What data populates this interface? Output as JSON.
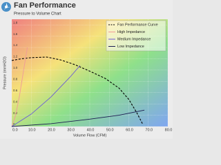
{
  "chart_data": {
    "type": "line",
    "title": "Fan Performance",
    "subtitle": "Pressure to Volume Chart",
    "x_label": "Volume Flow (CFM)",
    "y_label": "Pressure (mmH2O)",
    "xlim": [
      0,
      80
    ],
    "ylim": [
      0,
      1.9
    ],
    "xticks": [
      {
        "value": 0,
        "label": "0.0"
      },
      {
        "value": 10,
        "label": "10.0"
      },
      {
        "value": 20,
        "label": "20.0"
      },
      {
        "value": 30,
        "label": "30.0"
      },
      {
        "value": 40,
        "label": "40.0"
      },
      {
        "value": 50,
        "label": "50.0"
      },
      {
        "value": 60,
        "label": "60.0"
      },
      {
        "value": 70,
        "label": "70.0"
      },
      {
        "value": 80,
        "label": "80.0"
      }
    ],
    "yticks": [
      0,
      0.2,
      0.4,
      0.6,
      0.8,
      {
        "value": 1,
        "label": "1.0"
      },
      1.2,
      1.4,
      1.6,
      1.8
    ],
    "grid": true,
    "legend": "upper right",
    "series": [
      {
        "name": "Fan Performance Curve",
        "color": "#000000",
        "dashed": true,
        "x": [
          0,
          5,
          10,
          18,
          25,
          32,
          40,
          48,
          55,
          60,
          64,
          67
        ],
        "values": [
          1.17,
          1.2,
          1.22,
          1.23,
          1.18,
          1.1,
          0.98,
          0.85,
          0.68,
          0.48,
          0.25,
          0.05
        ]
      },
      {
        "name": "High Impedance",
        "color": "#f09a9a",
        "dashed": false,
        "x": [
          0,
          2,
          4,
          6,
          8
        ],
        "values": [
          0,
          0.2,
          0.55,
          0.98,
          1.4
        ]
      },
      {
        "name": "Medium Impedance",
        "color": "#6a5ad8",
        "dashed": false,
        "x": [
          0,
          10,
          20,
          30,
          35
        ],
        "values": [
          0,
          0.22,
          0.52,
          0.88,
          1.08
        ]
      },
      {
        "name": "Low Impedance",
        "color": "#1a1a50",
        "dashed": false,
        "x": [
          0,
          20,
          40,
          55,
          68
        ],
        "values": [
          0,
          0.05,
          0.13,
          0.2,
          0.29
        ]
      }
    ]
  }
}
